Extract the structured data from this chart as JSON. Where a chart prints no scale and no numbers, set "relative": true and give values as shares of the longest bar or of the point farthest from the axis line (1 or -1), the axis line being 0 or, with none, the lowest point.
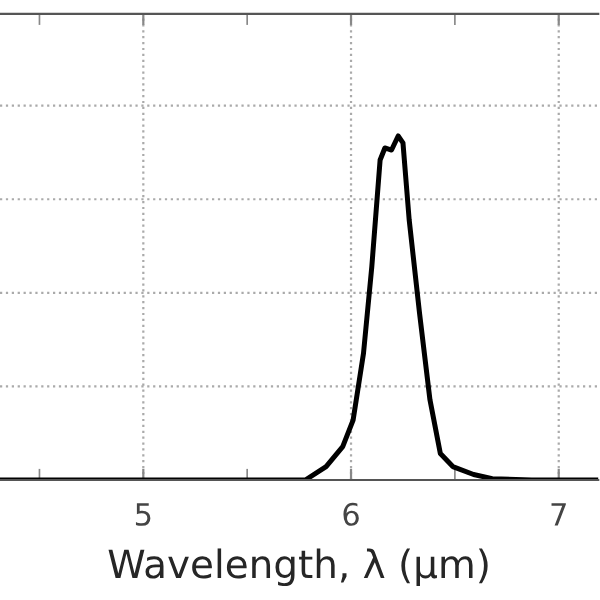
{
  "chart_data": {
    "type": "line",
    "xlabel": "Wavelength, λ (µm)",
    "relative": true,
    "grid": true,
    "tick_labels": "x",
    "legend": false,
    "marker": "none",
    "line_style": "solid",
    "xlim": [
      4.31,
      7.19
    ],
    "xticks": [
      {
        "value": 4.5,
        "label": null
      },
      5,
      {
        "value": 5.5,
        "label": null
      },
      6,
      {
        "value": 6.5,
        "label": null
      },
      7
    ],
    "series": [
      {
        "color": "#000000",
        "x": [
          4.31,
          5.0,
          5.5,
          5.78,
          5.88,
          5.96,
          6.01,
          6.06,
          6.1,
          6.14,
          6.163,
          6.195,
          6.227,
          6.25,
          6.28,
          6.33,
          6.38,
          6.43,
          6.49,
          6.59,
          6.68,
          6.87,
          7.19
        ],
        "values": [
          0,
          0,
          0,
          0,
          0.039,
          0.097,
          0.174,
          0.368,
          0.62,
          0.93,
          0.965,
          0.959,
          1.0,
          0.98,
          0.756,
          0.484,
          0.233,
          0.077,
          0.039,
          0.016,
          0.004,
          0,
          0
        ]
      }
    ]
  }
}
